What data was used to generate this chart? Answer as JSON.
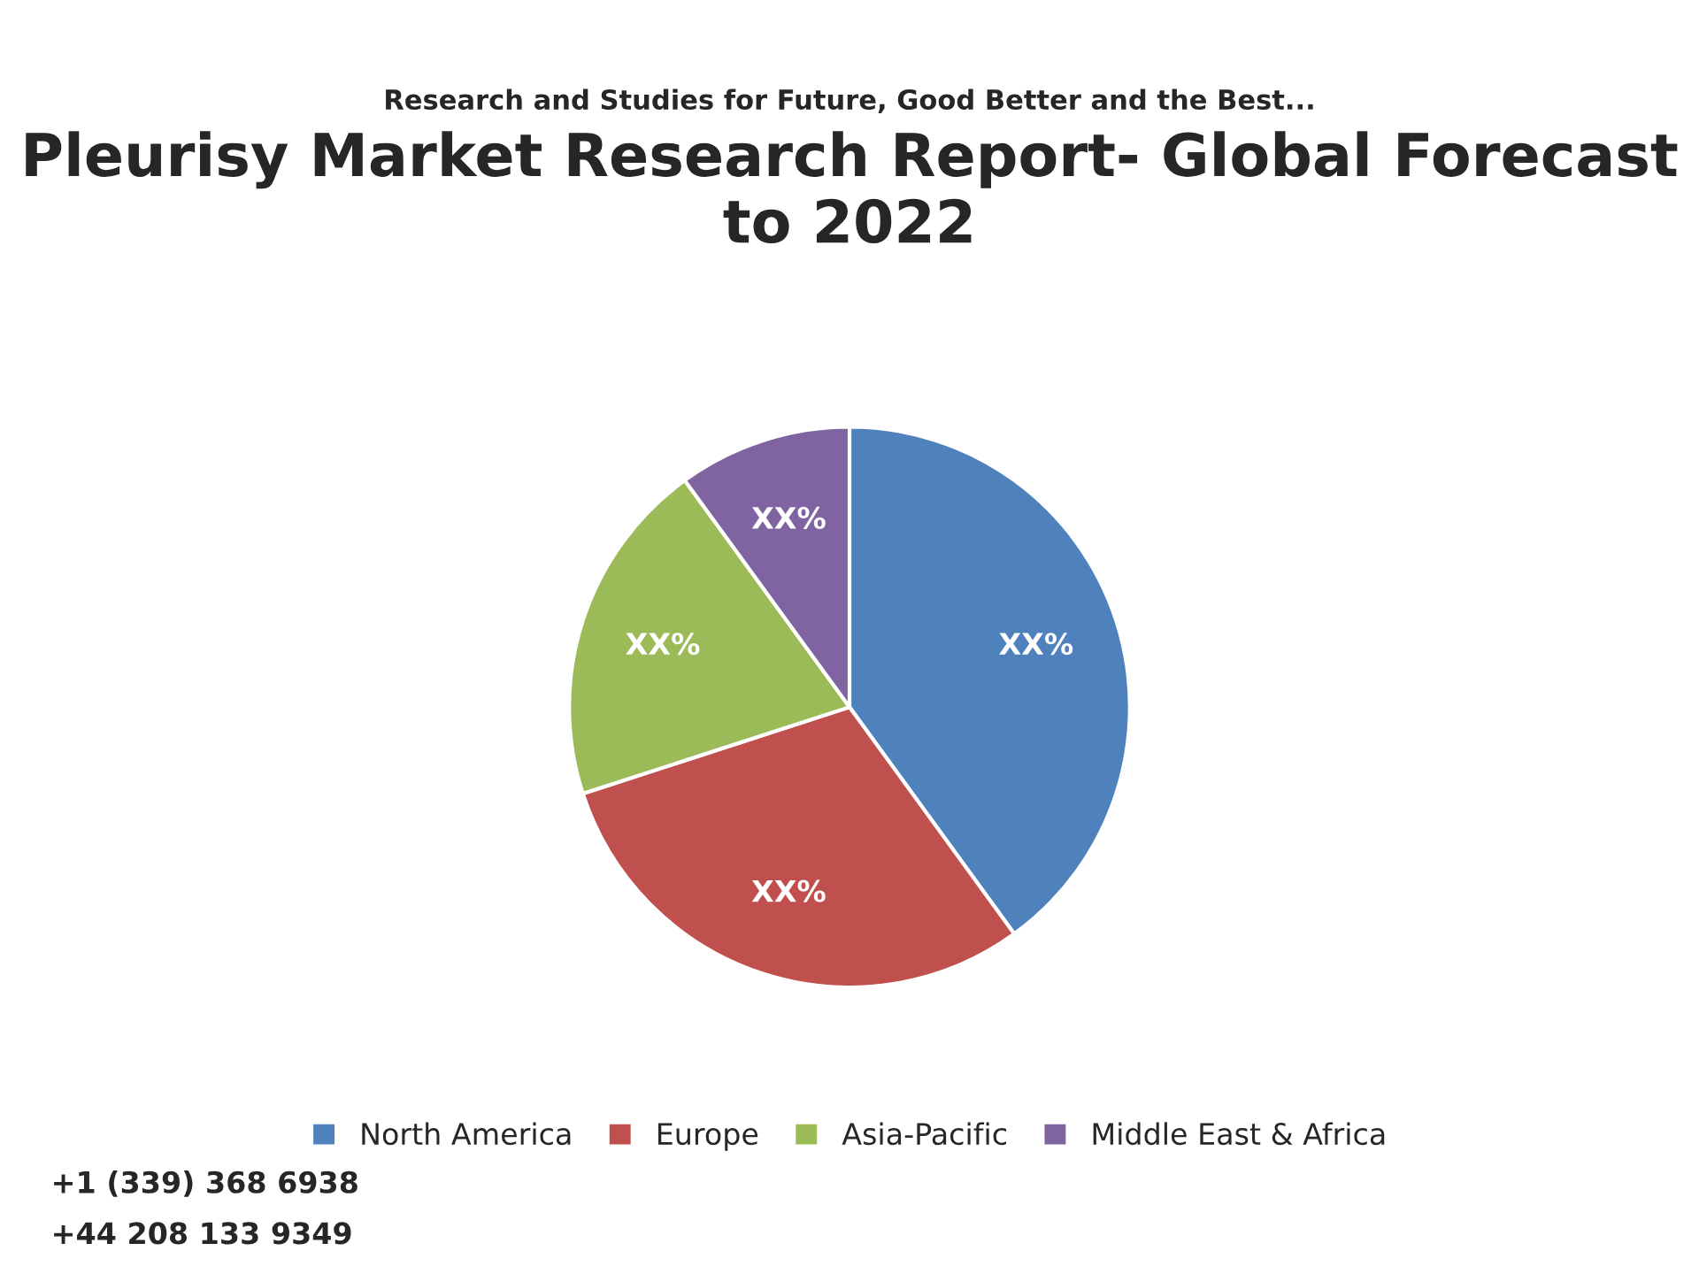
{
  "chart_data": {
    "type": "pie",
    "title": "Pleurisy Market Research Report- Global Forecast to 2022",
    "categories": [
      "North America",
      "Europe",
      "Asia-Pacific",
      "Middle East & Africa"
    ],
    "values": [
      40,
      30,
      20,
      10
    ],
    "colors": [
      "#4f81bd",
      "#c0504d",
      "#9bbb59",
      "#8064a2"
    ],
    "value_labels": [
      "XX%",
      "XX%",
      "XX%",
      "XX%"
    ],
    "legend": "bottom",
    "annotations": [
      "Research and Studies for Future, Good Better and the Best...",
      "+1 (339) 368 6938",
      "+44 208 133 9349"
    ]
  }
}
